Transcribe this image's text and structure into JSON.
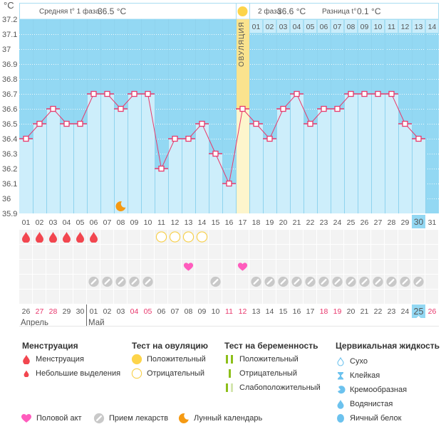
{
  "unit_label": "°C",
  "header": {
    "phase1_label": "Средняя t° 1 фаза",
    "phase1_value": "36.5 °C",
    "phase2_label": "2 фаза",
    "phase2_value": "36.6 °C",
    "diff_label": "Разница t°",
    "diff_value": "0.1 °C",
    "ovulation_label": "ОВУЛЯЦИЯ"
  },
  "chart_data": {
    "type": "line",
    "title": "",
    "xlabel": "",
    "ylabel": "°C",
    "ylim": [
      35.9,
      37.2
    ],
    "grid": true,
    "yticks": [
      "37.2",
      "37.1",
      "37",
      "36.9",
      "36.8",
      "36.7",
      "36.6",
      "36.5",
      "36.4",
      "36.3",
      "36.2",
      "36.1",
      "36",
      "35.9"
    ],
    "cycle_days": [
      "01",
      "02",
      "03",
      "04",
      "05",
      "06",
      "07",
      "08",
      "09",
      "10",
      "11",
      "12",
      "13",
      "14",
      "15",
      "16",
      "17",
      "18",
      "19",
      "20",
      "21",
      "22",
      "23",
      "24",
      "25",
      "26",
      "27",
      "28",
      "29",
      "30",
      "31"
    ],
    "temperatures": [
      36.4,
      36.5,
      36.6,
      36.5,
      36.5,
      36.7,
      36.7,
      36.6,
      36.7,
      36.7,
      36.2,
      36.4,
      36.4,
      36.5,
      36.3,
      36.1,
      36.6,
      36.5,
      36.4,
      36.6,
      36.7,
      36.5,
      36.6,
      36.6,
      36.7,
      36.7,
      36.7,
      36.7,
      36.5,
      36.4,
      null
    ],
    "ovulation_day": 17,
    "phase2_day_labels": [
      "01",
      "02",
      "03",
      "04",
      "05",
      "06",
      "07",
      "08",
      "09",
      "10",
      "11",
      "12",
      "13",
      "14"
    ],
    "selected_cycle_day": "30",
    "moon_days": [
      8
    ]
  },
  "tracker": {
    "menstruation_days": [
      1,
      2,
      3,
      4,
      5,
      6
    ],
    "ovulation_test_negative_days": [
      11,
      12,
      13,
      14
    ],
    "intercourse_days": [
      13,
      17
    ],
    "medication_days": [
      6,
      7,
      8,
      9,
      10,
      15,
      18,
      19,
      20,
      21,
      22,
      23,
      24,
      25,
      26,
      27,
      28,
      29,
      30
    ]
  },
  "calendar": {
    "dates": [
      {
        "d": "26",
        "weekend": false
      },
      {
        "d": "27",
        "weekend": true
      },
      {
        "d": "28",
        "weekend": true
      },
      {
        "d": "29",
        "weekend": false
      },
      {
        "d": "30",
        "weekend": false
      },
      {
        "d": "01",
        "weekend": false
      },
      {
        "d": "02",
        "weekend": false
      },
      {
        "d": "03",
        "weekend": false
      },
      {
        "d": "04",
        "weekend": true
      },
      {
        "d": "05",
        "weekend": true
      },
      {
        "d": "06",
        "weekend": false
      },
      {
        "d": "07",
        "weekend": false
      },
      {
        "d": "08",
        "weekend": false
      },
      {
        "d": "09",
        "weekend": false
      },
      {
        "d": "10",
        "weekend": false
      },
      {
        "d": "11",
        "weekend": true
      },
      {
        "d": "12",
        "weekend": true
      },
      {
        "d": "13",
        "weekend": false
      },
      {
        "d": "14",
        "weekend": false
      },
      {
        "d": "15",
        "weekend": false
      },
      {
        "d": "16",
        "weekend": false
      },
      {
        "d": "17",
        "weekend": false
      },
      {
        "d": "18",
        "weekend": true
      },
      {
        "d": "19",
        "weekend": true
      },
      {
        "d": "20",
        "weekend": false
      },
      {
        "d": "21",
        "weekend": false
      },
      {
        "d": "22",
        "weekend": false
      },
      {
        "d": "23",
        "weekend": false
      },
      {
        "d": "24",
        "weekend": false
      },
      {
        "d": "25",
        "weekend": false,
        "today": true
      },
      {
        "d": "26",
        "weekend": true
      }
    ],
    "months": [
      {
        "label": "Апрель",
        "start_index": 0
      },
      {
        "label": "Май",
        "start_index": 5
      }
    ]
  },
  "legend": {
    "menstruation": {
      "title": "Менструация",
      "items": [
        {
          "icon": "drop-large-icon",
          "label": "Менструация"
        },
        {
          "icon": "drop-small-icon",
          "label": "Небольшие выделения"
        }
      ]
    },
    "ovulation_test": {
      "title": "Тест на овуляцию",
      "items": [
        {
          "icon": "circle-filled-icon",
          "label": "Положительный"
        },
        {
          "icon": "circle-outline-icon",
          "label": "Отрицательный"
        }
      ]
    },
    "pregnancy_test": {
      "title": "Тест на беременность",
      "items": [
        {
          "icon": "two-bars-icon",
          "label": "Положительный"
        },
        {
          "icon": "one-bar-icon",
          "label": "Отрицательный"
        },
        {
          "icon": "faint-bars-icon",
          "label": "Слабоположительный"
        }
      ]
    },
    "cervical_fluid": {
      "title": "Цервикальная жидкость",
      "items": [
        {
          "icon": "dry-icon",
          "label": "Сухо"
        },
        {
          "icon": "sticky-icon",
          "label": "Клейкая"
        },
        {
          "icon": "creamy-icon",
          "label": "Кремообразная"
        },
        {
          "icon": "watery-icon",
          "label": "Водянистая"
        },
        {
          "icon": "egg-white-icon",
          "label": "Яичный белок"
        }
      ]
    },
    "other": [
      {
        "icon": "heart-icon",
        "label": "Половой акт"
      },
      {
        "icon": "pill-icon",
        "label": "Прием лекарств"
      },
      {
        "icon": "moon-icon",
        "label": "Лунный календарь"
      }
    ]
  },
  "colors": {
    "chart_bg": "#93d8f3",
    "bar": "#cdeefb",
    "line": "#e8396b",
    "ovulation": "#fae38e",
    "ovulation_light": "#fdf5cc",
    "weekend": "#e8366b",
    "highlight": "#93d8f3"
  }
}
